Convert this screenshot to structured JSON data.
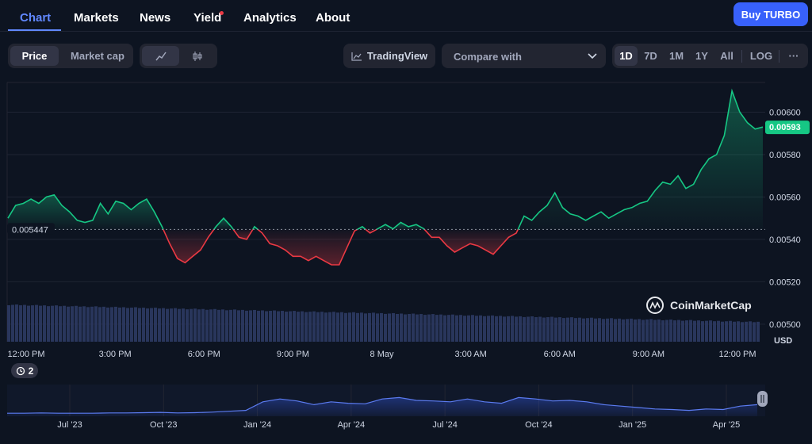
{
  "nav": {
    "tabs": [
      {
        "label": "Chart"
      },
      {
        "label": "Markets"
      },
      {
        "label": "News"
      },
      {
        "label": "Yield"
      },
      {
        "label": "Analytics"
      },
      {
        "label": "About"
      }
    ],
    "buy_label": "Buy TURBO"
  },
  "toolbar": {
    "price_label": "Price",
    "marketcap_label": "Market cap",
    "tradingview_label": "TradingView",
    "compare_label": "Compare with",
    "ranges": [
      "1D",
      "7D",
      "1M",
      "1Y",
      "All"
    ],
    "log_label": "LOG",
    "more_label": "···"
  },
  "footer": {
    "history_count": "2"
  },
  "colors": {
    "up": "#16c784",
    "down": "#ea3943",
    "accent": "#6188ff",
    "volume": "#2c3a63"
  },
  "chart_data": {
    "type": "line",
    "title": "",
    "xlabel": "",
    "ylabel": "USD",
    "ylim": [
      0.00491,
      0.00614
    ],
    "y_ticks": [
      "0.00600",
      "0.00580",
      "0.00560",
      "0.00540",
      "0.00520",
      "0.00500"
    ],
    "x_ticks": [
      "12:00 PM",
      "3:00 PM",
      "6:00 PM",
      "9:00 PM",
      "8 May",
      "3:00 AM",
      "6:00 AM",
      "9:00 AM",
      "12:00 PM"
    ],
    "baseline": {
      "value": 0.005447,
      "label": "0.005447"
    },
    "current": {
      "value": 0.00593,
      "label": "0.00593"
    },
    "grid": true,
    "legend": "none",
    "watermark": "CoinMarketCap",
    "series": [
      {
        "x": [
          0,
          0.25,
          0.5,
          0.75,
          1,
          1.25,
          1.5,
          1.75,
          2,
          2.25,
          2.5,
          2.75,
          3,
          3.25,
          3.5,
          3.75,
          4,
          4.25,
          4.5,
          4.75,
          5,
          5.25,
          5.5,
          5.75,
          6,
          6.25,
          6.5,
          6.75,
          7,
          7.25,
          7.5,
          7.75,
          8,
          8.25,
          8.5,
          8.75,
          9,
          9.25,
          9.5,
          9.75,
          10,
          10.25,
          10.5,
          10.75,
          11,
          11.25,
          11.5,
          11.75,
          12,
          12.25,
          12.5,
          12.75,
          13,
          13.25,
          13.5,
          13.75,
          14,
          14.25,
          14.5,
          14.75,
          15,
          15.25,
          15.5,
          15.75,
          16,
          16.25,
          16.5,
          16.75,
          17,
          17.25,
          17.5,
          17.75,
          18,
          18.25,
          18.5,
          18.75,
          19,
          19.25,
          19.5,
          19.75,
          20,
          20.25,
          20.5,
          20.75,
          21,
          21.25,
          21.5,
          21.75,
          22,
          22.25,
          22.5,
          22.75,
          23,
          23.25,
          23.5,
          23.75,
          24,
          24.25,
          24.5
        ],
        "values": [
          0.0055,
          0.00556,
          0.00557,
          0.00559,
          0.00557,
          0.0056,
          0.00561,
          0.00556,
          0.00553,
          0.00549,
          0.00548,
          0.00549,
          0.00557,
          0.00552,
          0.00558,
          0.00557,
          0.00554,
          0.00557,
          0.00559,
          0.00553,
          0.00546,
          0.00538,
          0.00531,
          0.00529,
          0.00532,
          0.00535,
          0.00541,
          0.00546,
          0.0055,
          0.00546,
          0.00541,
          0.0054,
          0.00546,
          0.00543,
          0.00538,
          0.00537,
          0.00535,
          0.00532,
          0.00532,
          0.0053,
          0.00532,
          0.0053,
          0.00528,
          0.00528,
          0.00536,
          0.00544,
          0.00546,
          0.00543,
          0.00545,
          0.00547,
          0.00545,
          0.00548,
          0.00546,
          0.00547,
          0.00545,
          0.00541,
          0.00541,
          0.00537,
          0.00534,
          0.00536,
          0.00538,
          0.00537,
          0.00535,
          0.00533,
          0.00537,
          0.00541,
          0.00543,
          0.00551,
          0.00549,
          0.00553,
          0.00556,
          0.00562,
          0.00555,
          0.00552,
          0.00551,
          0.00549,
          0.00551,
          0.00553,
          0.0055,
          0.00552,
          0.00554,
          0.00555,
          0.00557,
          0.00558,
          0.00563,
          0.00567,
          0.00566,
          0.0057,
          0.00564,
          0.00566,
          0.00573,
          0.00578,
          0.0058,
          0.00589,
          0.0061,
          0.006,
          0.00595,
          0.00592,
          0.00593
        ]
      }
    ],
    "volume_note": "volume bars decline gradually across the range",
    "navigator": {
      "x_ticks": [
        "Jul '23",
        "Oct '23",
        "Jan '24",
        "Apr '24",
        "Jul '24",
        "Oct '24",
        "Jan '25",
        "Apr '25"
      ],
      "values": [
        0.05,
        0.05,
        0.06,
        0.05,
        0.05,
        0.05,
        0.06,
        0.06,
        0.07,
        0.08,
        0.06,
        0.07,
        0.09,
        0.12,
        0.15,
        0.45,
        0.55,
        0.48,
        0.35,
        0.45,
        0.4,
        0.38,
        0.55,
        0.6,
        0.5,
        0.48,
        0.45,
        0.55,
        0.45,
        0.4,
        0.6,
        0.55,
        0.48,
        0.5,
        0.45,
        0.35,
        0.3,
        0.25,
        0.2,
        0.18,
        0.15,
        0.2,
        0.18,
        0.3,
        0.35
      ]
    }
  }
}
